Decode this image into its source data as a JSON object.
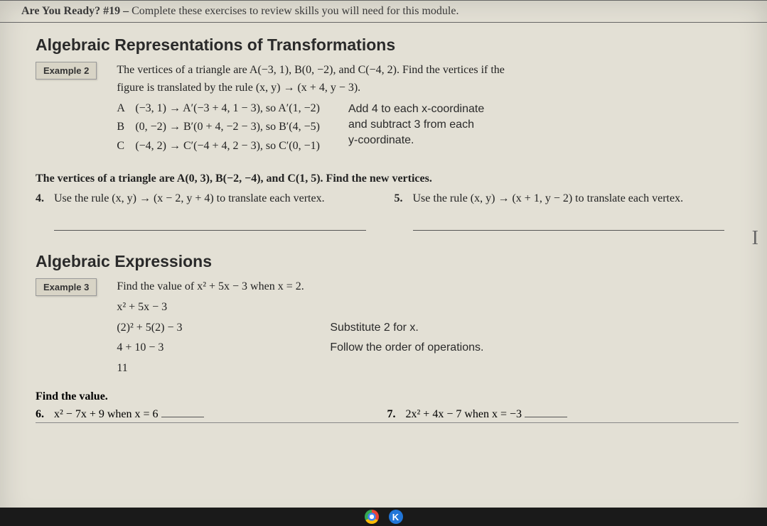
{
  "header": {
    "prefix": "Are You Ready? #19 – ",
    "rest": "Complete these exercises to review skills you will need for this module."
  },
  "section1": {
    "title": "Algebraic Representations of Transformations",
    "example_tag": "Example 2",
    "intro_line1": "The vertices of a triangle are A(−3, 1), B(0, −2), and C(−4, 2). Find the vertices if the",
    "intro_line2": "figure is translated by the rule (x, y) → (x + 4, y − 3).",
    "steps": [
      {
        "label": "A",
        "text": "(−3, 1) → A′(−3 + 4, 1 − 3), so A′(1, −2)"
      },
      {
        "label": "B",
        "text": "(0, −2) → B′(0 + 4, −2 − 3), so B′(4, −5)"
      },
      {
        "label": "C",
        "text": "(−4, 2) → C′(−4 + 4, 2 − 3), so C′(0, −1)"
      }
    ],
    "note_line1": "Add 4 to each x-coordinate",
    "note_line2": "and subtract 3 from each",
    "note_line3": "y-coordinate.",
    "problem_intro": "The vertices of a triangle are A(0, 3), B(−2, −4), and C(1, 5). Find the new vertices.",
    "p4_num": "4.",
    "p4_text": "Use the rule (x, y) → (x − 2, y + 4) to translate each vertex.",
    "p5_num": "5.",
    "p5_text": "Use the rule (x, y) → (x + 1, y − 2) to translate each vertex."
  },
  "section2": {
    "title": "Algebraic Expressions",
    "example_tag": "Example 3",
    "intro": "Find the value of x² + 5x − 3 when x = 2.",
    "rows": [
      {
        "left": "x² + 5x − 3",
        "right": ""
      },
      {
        "left": "(2)² + 5(2) − 3",
        "right": "Substitute 2 for x."
      },
      {
        "left": "4 + 10 − 3",
        "right": "Follow the order of operations."
      },
      {
        "left": "11",
        "right": ""
      }
    ],
    "find_value": "Find the value.",
    "p6_num": "6.",
    "p6_text": "x² − 7x + 9 when x = 6",
    "p7_num": "7.",
    "p7_text": "2x² + 4x − 7 when x = −3"
  },
  "cursor_glyph": "I",
  "taskbar": {
    "k_label": "K"
  }
}
